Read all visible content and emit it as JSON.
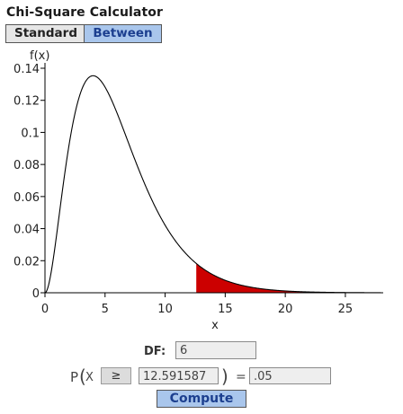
{
  "app": {
    "title": "Chi-Square Calculator"
  },
  "tabs": {
    "standard_label": "Standard",
    "between_label": "Between",
    "active": "Between"
  },
  "colors": {
    "shaded_region": "#cc0000",
    "active_tab_bg": "#a9c6ec",
    "active_tab_text": "#1c3f8f"
  },
  "chart_data": {
    "type": "area",
    "distribution": "chi-square",
    "df": 6,
    "ylabel": "f(x)",
    "xlabel": "x",
    "xlim": [
      0,
      28
    ],
    "ylim": [
      0,
      0.14
    ],
    "x_ticks": [
      0,
      5,
      10,
      15,
      20,
      25
    ],
    "y_ticks": [
      0,
      0.02,
      0.04,
      0.06,
      0.08,
      0.1,
      0.12,
      0.14
    ],
    "x_tick_labels": [
      "0",
      "5",
      "10",
      "15",
      "20",
      "25"
    ],
    "y_tick_labels": [
      "0",
      "0.02",
      "0.04",
      "0.06",
      "0.08",
      "0.1",
      "0.12",
      "0.14"
    ],
    "shaded_from": 12.591587,
    "shaded_to": 28
  },
  "form": {
    "df_label": "DF:",
    "df_value": "6",
    "p_label": "P",
    "open_paren": "(",
    "x_label": "X",
    "operator": "≥",
    "critical_value": "12.591587",
    "close_paren": ")",
    "equals": "=",
    "probability": ".05",
    "compute_label": "Compute"
  }
}
